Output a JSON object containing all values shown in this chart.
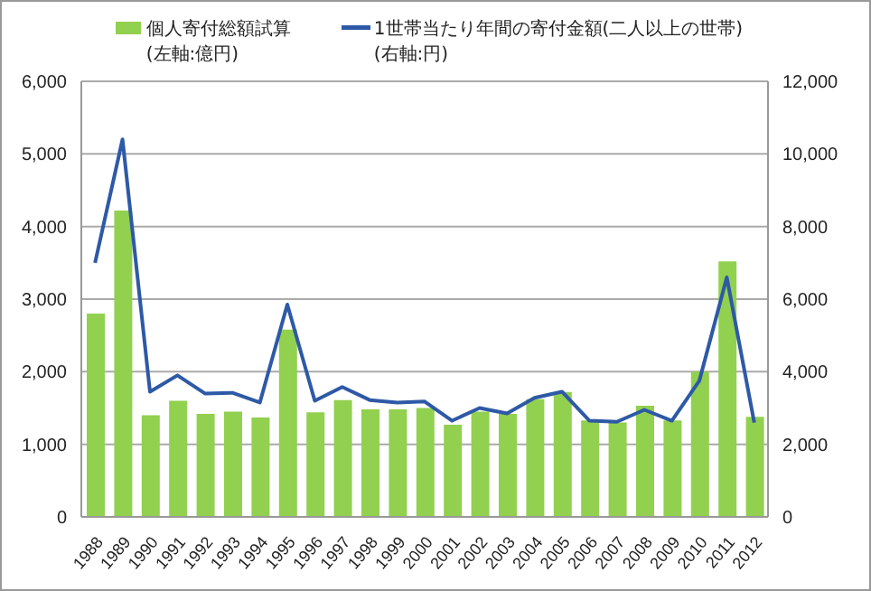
{
  "chart_data": {
    "type": "bar",
    "categories": [
      "1988",
      "1989",
      "1990",
      "1991",
      "1992",
      "1993",
      "1994",
      "1995",
      "1996",
      "1997",
      "1998",
      "1999",
      "2000",
      "2001",
      "2002",
      "2003",
      "2004",
      "2005",
      "2006",
      "2007",
      "2008",
      "2009",
      "2010",
      "2011",
      "2012"
    ],
    "series": [
      {
        "name": "個人寄付総額試算\n(左軸:億円)",
        "color": "#92d050",
        "values": [
          2800,
          4220,
          1400,
          1600,
          1420,
          1450,
          1370,
          2580,
          1440,
          1610,
          1480,
          1480,
          1500,
          1270,
          1450,
          1420,
          1620,
          1720,
          1330,
          1300,
          1530,
          1330,
          2000,
          3520,
          1380
        ]
      },
      {
        "name": "1世帯当たり年間の寄付金額(二人以上の世帯)\n(右軸:円)",
        "type": "line",
        "axis": "y2",
        "color": "#2e59a6",
        "values": [
          7000,
          10400,
          3450,
          3900,
          3400,
          3420,
          3150,
          5850,
          3200,
          3580,
          3220,
          3150,
          3180,
          2650,
          3000,
          2850,
          3280,
          3450,
          2650,
          2620,
          2950,
          2650,
          3750,
          6600,
          2600
        ]
      }
    ],
    "ylim": [
      0,
      6000
    ],
    "yticks": [
      0,
      {
        "value": 1000,
        "label": "1,000"
      },
      {
        "value": 2000,
        "label": "2,000"
      },
      {
        "value": 3000,
        "label": "3,000"
      },
      {
        "value": 4000,
        "label": "4,000"
      },
      {
        "value": 5000,
        "label": "5,000"
      },
      {
        "value": 6000,
        "label": "6,000"
      }
    ],
    "y2lim": [
      0,
      12000
    ],
    "y2ticks": [
      0,
      {
        "value": 2000,
        "label": "2,000"
      },
      {
        "value": 4000,
        "label": "4,000"
      },
      {
        "value": 6000,
        "label": "6,000"
      },
      {
        "value": 8000,
        "label": "8,000"
      },
      {
        "value": 10000,
        "label": "10,000"
      },
      {
        "value": 12000,
        "label": "12,000"
      }
    ],
    "grid": "y",
    "legend": "top",
    "marker": "none"
  }
}
